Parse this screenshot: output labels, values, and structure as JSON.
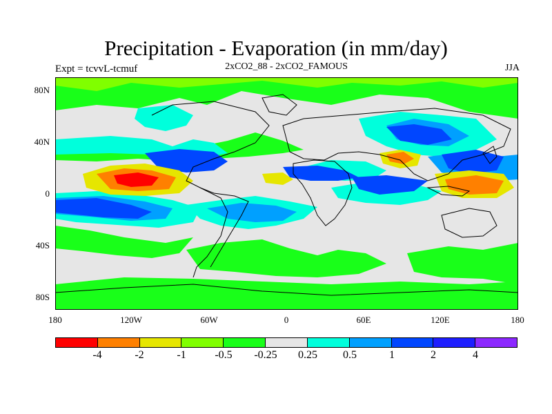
{
  "title": "Precipitation - Evaporation (in mm/day)",
  "expt": "Expt = tcvvL-tcmuf",
  "subtitle": "2xCO2_88 - 2xCO2_FAMOUS",
  "season": "JJA",
  "lat_labels": [
    "80N",
    "40N",
    "0",
    "40S",
    "80S"
  ],
  "lon_labels": [
    "180",
    "120W",
    "60W",
    "0",
    "60E",
    "120E",
    "180"
  ],
  "colorbar": {
    "colors": [
      "#ff0000",
      "#ff8000",
      "#e6e600",
      "#80ff00",
      "#19ff19",
      "#e6e6e6",
      "#00ffdc",
      "#00a0ff",
      "#0046ff",
      "#1e1eff",
      "#8c28ff"
    ],
    "labels": [
      "-4",
      "-2",
      "-1",
      "-0.5",
      "-0.25",
      "0.25",
      "0.5",
      "1",
      "2",
      "4"
    ]
  },
  "colors": {
    "land_outline": "#000000",
    "background_field": "#e6e6e6"
  }
}
